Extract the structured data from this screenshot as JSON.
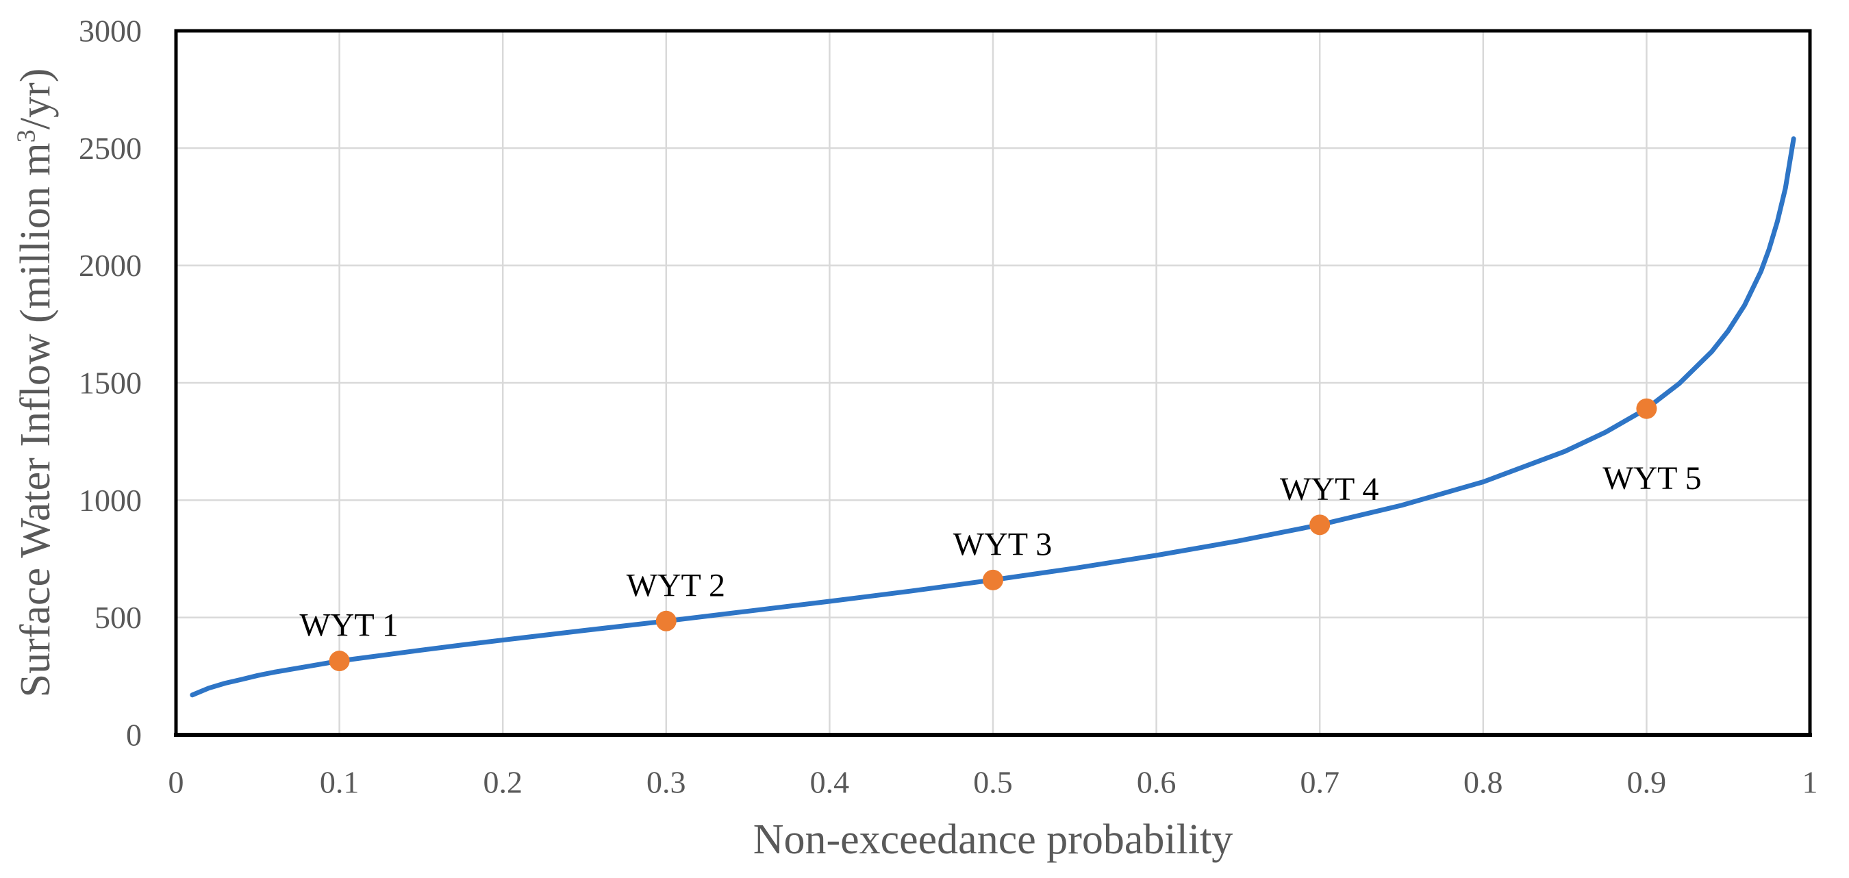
{
  "figure": {
    "background": "#FFFFFF"
  },
  "chart_data": {
    "type": "line",
    "title": "",
    "xlabel": "Non-exceedance probability",
    "ylabel": "Surface Water Inflow (million m³/yr)",
    "ylabel_parts": {
      "prefix": "Surface Water Inflow (million m",
      "superscript": "3",
      "suffix": "/yr)"
    },
    "xlim": [
      0,
      1
    ],
    "ylim": [
      0,
      3000
    ],
    "grid": true,
    "legend_position": "none",
    "x_ticks": [
      {
        "value": 0,
        "label": "0"
      },
      {
        "value": 0.1,
        "label": "0.1"
      },
      {
        "value": 0.2,
        "label": "0.2"
      },
      {
        "value": 0.3,
        "label": "0.3"
      },
      {
        "value": 0.4,
        "label": "0.4"
      },
      {
        "value": 0.5,
        "label": "0.5"
      },
      {
        "value": 0.6,
        "label": "0.6"
      },
      {
        "value": 0.7,
        "label": "0.7"
      },
      {
        "value": 0.8,
        "label": "0.8"
      },
      {
        "value": 0.9,
        "label": "0.9"
      },
      {
        "value": 1,
        "label": "1"
      }
    ],
    "y_ticks": [
      {
        "value": 0,
        "label": "0"
      },
      {
        "value": 500,
        "label": "500"
      },
      {
        "value": 1000,
        "label": "1000"
      },
      {
        "value": 1500,
        "label": "1500"
      },
      {
        "value": 2000,
        "label": "2000"
      },
      {
        "value": 2500,
        "label": "2500"
      },
      {
        "value": 3000,
        "label": "3000"
      }
    ],
    "curve": {
      "name": "surface-water-inflow-curve",
      "color": "#2E75C6",
      "stroke_width": 7,
      "points": [
        [
          0.01,
          170
        ],
        [
          0.02,
          199
        ],
        [
          0.03,
          220
        ],
        [
          0.04,
          236
        ],
        [
          0.05,
          253
        ],
        [
          0.06,
          267
        ],
        [
          0.08,
          291
        ],
        [
          0.1,
          315
        ],
        [
          0.125,
          338
        ],
        [
          0.15,
          361
        ],
        [
          0.175,
          383
        ],
        [
          0.2,
          404
        ],
        [
          0.25,
          445
        ],
        [
          0.3,
          485
        ],
        [
          0.35,
          527
        ],
        [
          0.4,
          569
        ],
        [
          0.45,
          613
        ],
        [
          0.5,
          660
        ],
        [
          0.55,
          710
        ],
        [
          0.6,
          765
        ],
        [
          0.65,
          826
        ],
        [
          0.7,
          895
        ],
        [
          0.75,
          978
        ],
        [
          0.8,
          1078
        ],
        [
          0.85,
          1208
        ],
        [
          0.875,
          1290
        ],
        [
          0.9,
          1390
        ],
        [
          0.92,
          1497
        ],
        [
          0.94,
          1634
        ],
        [
          0.95,
          1722
        ],
        [
          0.96,
          1831
        ],
        [
          0.97,
          1975
        ],
        [
          0.975,
          2070
        ],
        [
          0.98,
          2186
        ],
        [
          0.985,
          2330
        ],
        [
          0.99,
          2540
        ]
      ]
    },
    "markers": {
      "name": "water-year-type-points",
      "color": "#ED7D31",
      "radius": 15,
      "label_color": "#000000",
      "points": [
        {
          "label": "WYT 1",
          "x": 0.1,
          "y": 315,
          "label_position": "above"
        },
        {
          "label": "WYT 2",
          "x": 0.3,
          "y": 485,
          "label_position": "above"
        },
        {
          "label": "WYT 3",
          "x": 0.5,
          "y": 660,
          "label_position": "above"
        },
        {
          "label": "WYT 4",
          "x": 0.7,
          "y": 895,
          "label_position": "above"
        },
        {
          "label": "WYT 5",
          "x": 0.9,
          "y": 1390,
          "label_position": "below"
        }
      ]
    },
    "styles": {
      "grid_color": "#D9D9D9",
      "grid_width": 2.5,
      "axis_color": "#000000",
      "border_width": 5,
      "bottom_axis_width": 6,
      "tick_label_color": "#595959",
      "axis_title_color": "#595959"
    }
  }
}
